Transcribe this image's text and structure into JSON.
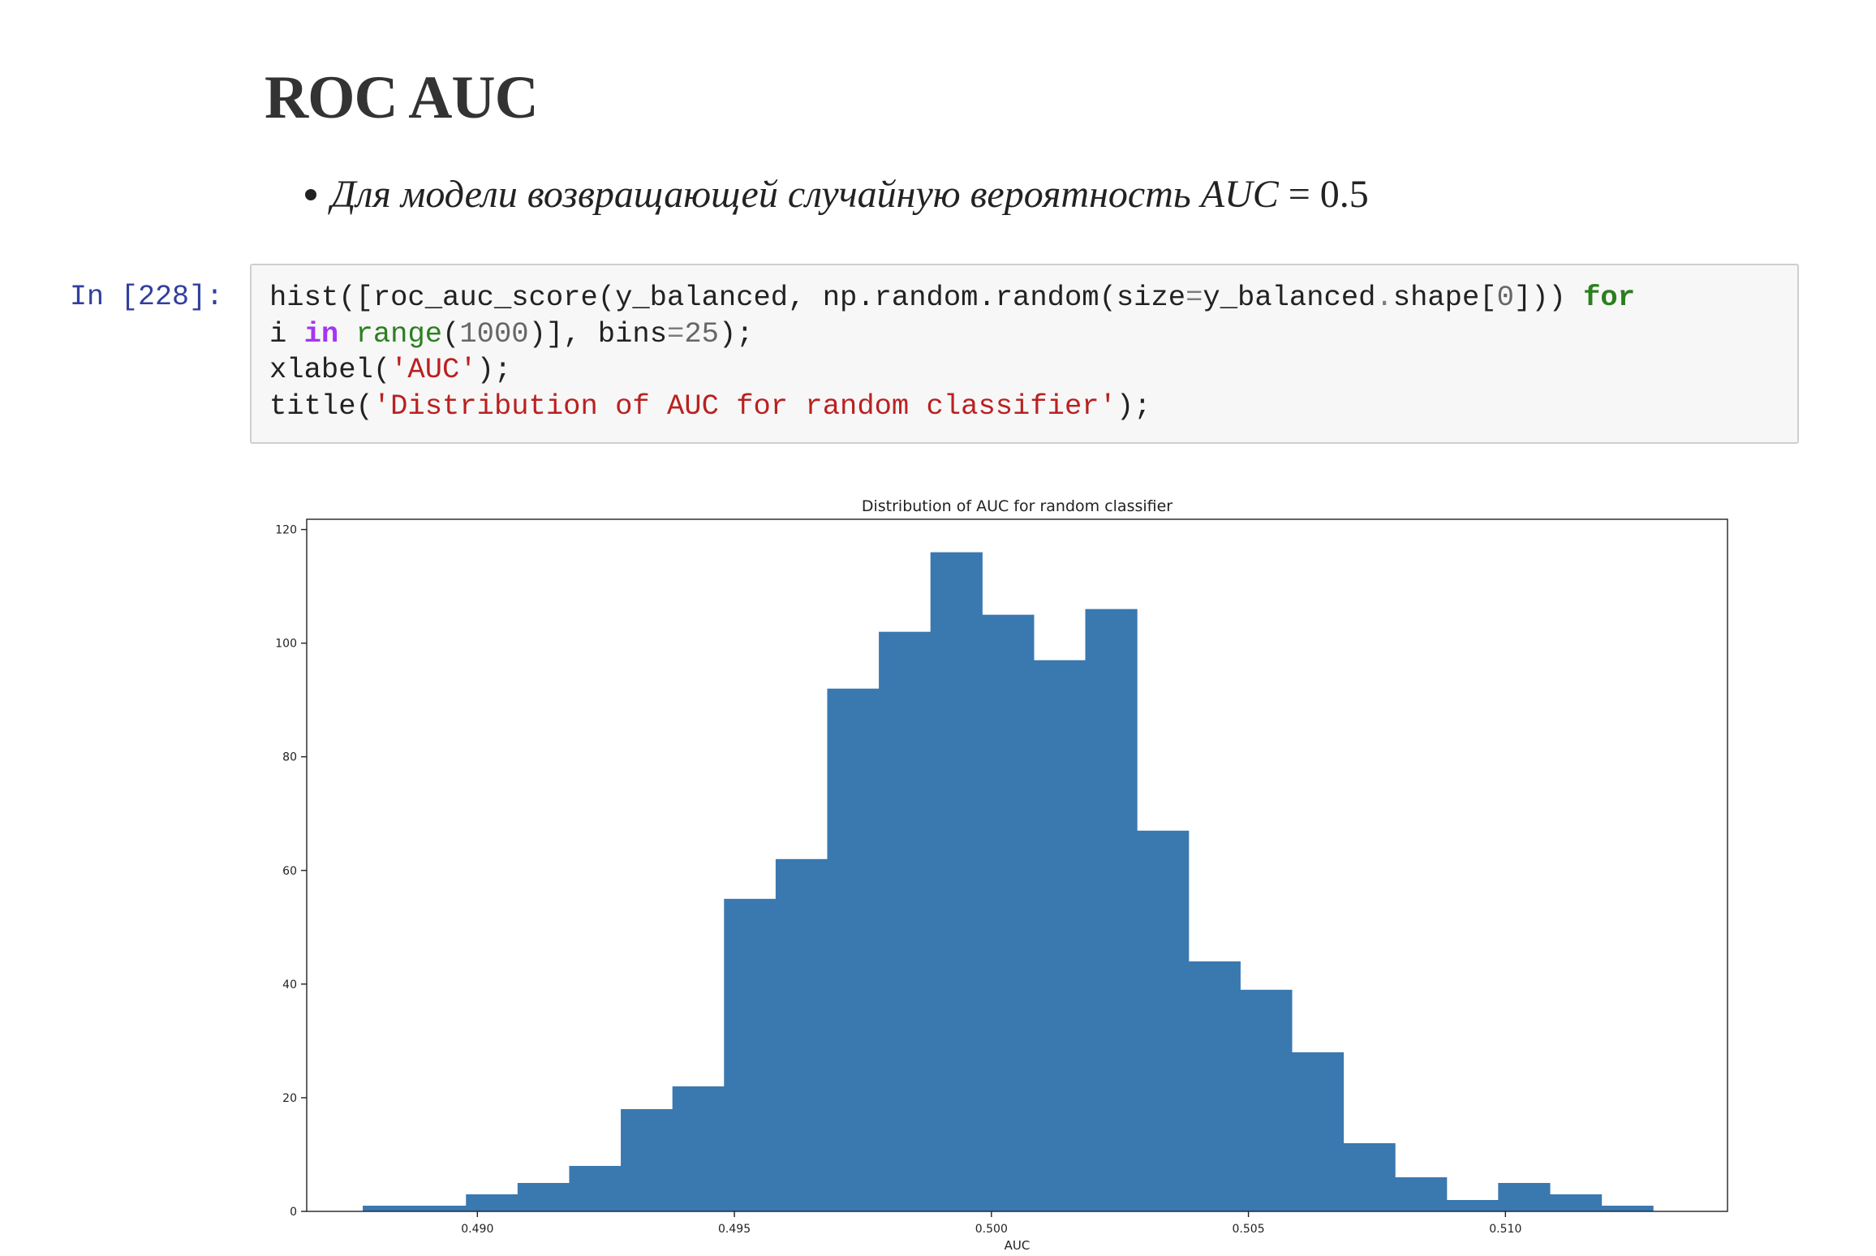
{
  "heading": "ROC AUC",
  "bullet": {
    "text": "Для модели возвращающей случайную вероятность",
    "math_var": "AUC",
    "math_rest": "= 0.5"
  },
  "cell": {
    "prompt": "In [228]:",
    "code_lines": [
      [
        {
          "t": "hist([roc_auc_score(y_balanced, np.random.random(size",
          "c": ""
        },
        {
          "t": "=",
          "c": "op"
        },
        {
          "t": "y_balanced",
          "c": ""
        },
        {
          "t": ".",
          "c": "op"
        },
        {
          "t": "shape[",
          "c": ""
        },
        {
          "t": "0",
          "c": "num"
        },
        {
          "t": "])) ",
          "c": ""
        },
        {
          "t": "for",
          "c": "kw"
        }
      ],
      [
        {
          "t": "i ",
          "c": ""
        },
        {
          "t": "in",
          "c": "kwin"
        },
        {
          "t": " ",
          "c": ""
        },
        {
          "t": "range",
          "c": "bi"
        },
        {
          "t": "(",
          "c": ""
        },
        {
          "t": "1000",
          "c": "num"
        },
        {
          "t": ")], bins",
          "c": ""
        },
        {
          "t": "=",
          "c": "op"
        },
        {
          "t": "25",
          "c": "num"
        },
        {
          "t": ");",
          "c": ""
        }
      ],
      [
        {
          "t": "xlabel(",
          "c": ""
        },
        {
          "t": "'AUC'",
          "c": "str"
        },
        {
          "t": ");",
          "c": ""
        }
      ],
      [
        {
          "t": "title(",
          "c": ""
        },
        {
          "t": "'Distribution of AUC for random classifier'",
          "c": "str"
        },
        {
          "t": ");",
          "c": ""
        }
      ]
    ]
  },
  "chart_data": {
    "type": "bar",
    "title": "Distribution of AUC for random classifier",
    "xlabel": "AUC",
    "ylabel": "",
    "bar_color": "#3a78b0",
    "bin_start": 0.48777,
    "bin_width": 0.001004,
    "values": [
      1,
      1,
      3,
      5,
      8,
      18,
      22,
      55,
      62,
      92,
      102,
      116,
      105,
      97,
      106,
      67,
      44,
      39,
      28,
      12,
      6,
      2,
      5,
      3,
      1
    ],
    "xlim": [
      0.48668,
      0.51432
    ],
    "ylim": [
      0,
      121.8
    ],
    "xticks": [
      "0.490",
      "0.495",
      "0.500",
      "0.505",
      "0.510"
    ],
    "xtick_values": [
      0.49,
      0.495,
      0.5,
      0.505,
      0.51
    ],
    "yticks": [
      "0",
      "20",
      "40",
      "60",
      "80",
      "100",
      "120"
    ],
    "ytick_values": [
      0,
      20,
      40,
      60,
      80,
      100,
      120
    ],
    "grid": false
  }
}
